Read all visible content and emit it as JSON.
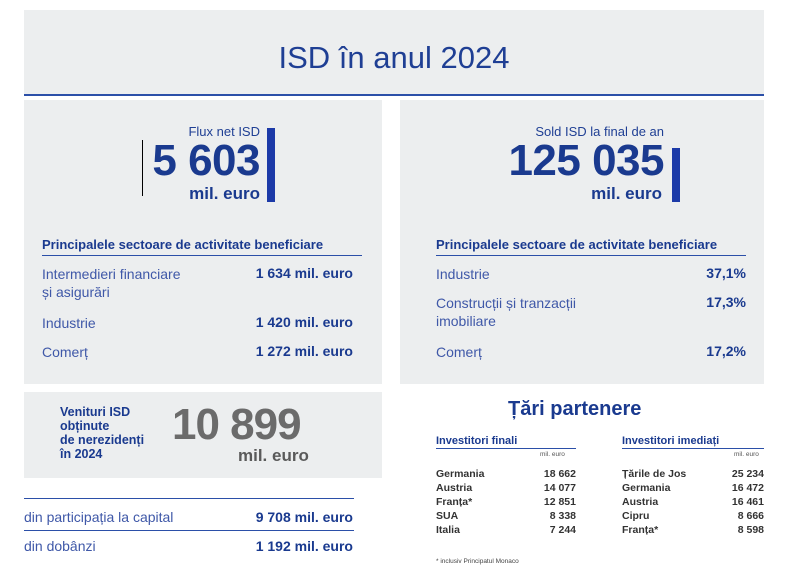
{
  "title": "ISD în anul 2024",
  "flux": {
    "caption": "Flux net ISD",
    "value": "5 603",
    "unit": "mil. euro",
    "sectors_heading": "Principalele sectoare de activitate beneficiare",
    "sectors": [
      {
        "label_line1": "Intermedieri financiare",
        "label_line2": "și asigurări",
        "value": "1 634 mil. euro"
      },
      {
        "label_line1": "Industrie",
        "label_line2": "",
        "value": "1 420 mil. euro"
      },
      {
        "label_line1": "Comerț",
        "label_line2": "",
        "value": "1 272 mil. euro"
      }
    ]
  },
  "sold": {
    "caption": "Sold ISD la final de an",
    "value": "125 035",
    "unit": "mil. euro",
    "sectors_heading": "Principalele sectoare de activitate beneficiare",
    "sectors": [
      {
        "label_line1": "Industrie",
        "label_line2": "",
        "value": "37,1%"
      },
      {
        "label_line1": "Construcții și tranzacții",
        "label_line2": "imobiliare",
        "value": "17,3%"
      },
      {
        "label_line1": "Comerț",
        "label_line2": "",
        "value": "17,2%"
      }
    ]
  },
  "venituri": {
    "label_lines": [
      "Venituri ISD",
      "obținute",
      "de nerezidenți",
      "în 2024"
    ],
    "value": "10 899",
    "unit": "mil. euro",
    "items": [
      {
        "label": "din participația la capital",
        "value": "9 708 mil. euro"
      },
      {
        "label": "din dobânzi",
        "value": "1 192 mil. euro"
      }
    ]
  },
  "tari": {
    "title": "Țări partenere",
    "finali": {
      "heading": "Investitori finali",
      "unit": "mil. euro",
      "rows": [
        {
          "country": "Germania",
          "value": "18 662"
        },
        {
          "country": "Austria",
          "value": "14 077"
        },
        {
          "country": "Franța*",
          "value": "12 851"
        },
        {
          "country": "SUA",
          "value": "8 338"
        },
        {
          "country": "Italia",
          "value": "7 244"
        }
      ]
    },
    "imediati": {
      "heading": "Investitori imediați",
      "unit": "mil. euro",
      "rows": [
        {
          "country": "Țările de Jos",
          "value": "25 234"
        },
        {
          "country": "Germania",
          "value": "16 472"
        },
        {
          "country": "Austria",
          "value": "16 461"
        },
        {
          "country": "Cipru",
          "value": "8 666"
        },
        {
          "country": "Franța*",
          "value": "8 598"
        }
      ]
    },
    "footnote": "* inclusiv Principatul Monaco"
  },
  "colors": {
    "accent": "#1a3a8f",
    "panel": "#eceeef",
    "bar": "#1c3aa8"
  }
}
